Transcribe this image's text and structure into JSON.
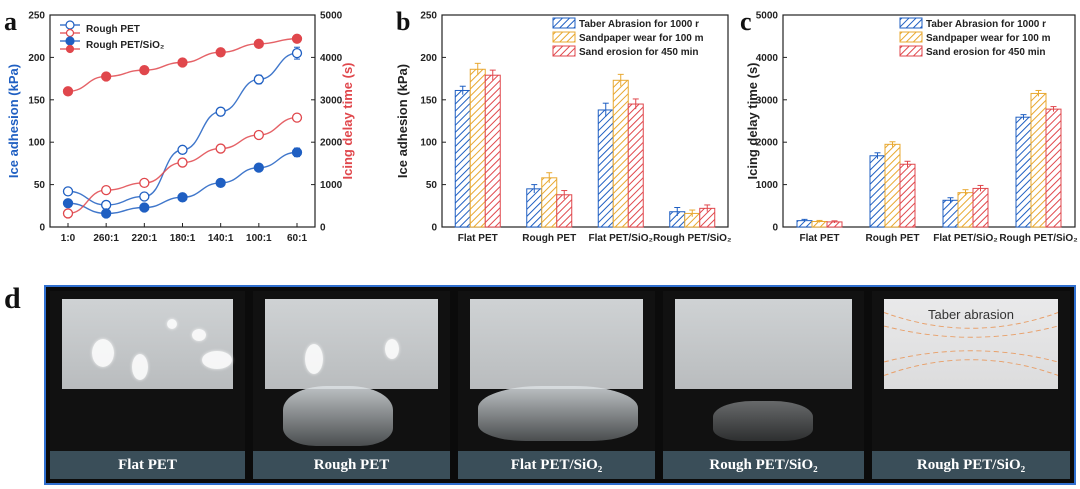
{
  "panel_labels": {
    "a": "a",
    "b": "b",
    "c": "c",
    "d": "d"
  },
  "colors": {
    "blue": "#1f5fc2",
    "red": "#e0474c",
    "yellow": "#e8a830",
    "axis": "#222222"
  },
  "chart_data": [
    {
      "panel": "a",
      "type": "line",
      "categories": [
        "1:0",
        "260:1",
        "220:1",
        "180:1",
        "140:1",
        "100:1",
        "60:1"
      ],
      "ylabel": "Ice adhesion (kPa)",
      "ylabel_right": "Icing delay time (s)",
      "ylim": [
        0,
        250
      ],
      "yticks": [
        0,
        50,
        100,
        150,
        200,
        250
      ],
      "ylim_right": [
        0,
        5000
      ],
      "yticks_right": [
        0,
        1000,
        2000,
        3000,
        4000,
        5000
      ],
      "legend": [
        "Rough PET",
        "Rough PET/SiO₂"
      ],
      "legend_position": "top-left",
      "series": [
        {
          "name": "Rough PET",
          "axis": "left",
          "style": "open",
          "color": "#1f5fc2",
          "values": [
            42,
            26,
            36,
            91,
            136,
            174,
            205
          ],
          "errors": [
            3,
            3,
            3,
            3,
            4,
            5,
            7
          ]
        },
        {
          "name": "Rough PET/SiO₂",
          "axis": "left",
          "style": "filled",
          "color": "#1f5fc2",
          "values": [
            28,
            16,
            23,
            35,
            52,
            70,
            88
          ],
          "errors": [
            2,
            2,
            2,
            2,
            3,
            4,
            5
          ]
        },
        {
          "name": "Rough PET",
          "axis": "right",
          "style": "open",
          "color": "#e0474c",
          "values": [
            320,
            870,
            1040,
            1520,
            1850,
            2170,
            2580
          ]
        },
        {
          "name": "Rough PET/SiO₂",
          "axis": "right",
          "style": "filled",
          "color": "#e0474c",
          "values": [
            3200,
            3550,
            3700,
            3880,
            4120,
            4320,
            4440
          ]
        }
      ]
    },
    {
      "panel": "b",
      "type": "bar",
      "categories": [
        "Flat PET",
        "Rough PET",
        "Flat PET/SiO₂",
        "Rough PET/SiO₂"
      ],
      "ylabel": "Ice adhesion (kPa)",
      "ylim": [
        0,
        250
      ],
      "yticks": [
        0,
        50,
        100,
        150,
        200,
        250
      ],
      "legend_position": "top-right",
      "series": [
        {
          "name": "Taber Abrasion for 1000 r",
          "color": "#1f5fc2",
          "values": [
            161,
            45,
            138,
            18
          ],
          "errors": [
            5,
            5,
            8,
            5
          ]
        },
        {
          "name": "Sandpaper wear for 100 m",
          "color": "#e8a830",
          "values": [
            186,
            58,
            173,
            16
          ],
          "errors": [
            7,
            6,
            7,
            4
          ]
        },
        {
          "name": "Sand erosion for 450 min",
          "color": "#e0474c",
          "values": [
            179,
            38,
            145,
            22
          ],
          "errors": [
            6,
            5,
            6,
            4
          ]
        }
      ]
    },
    {
      "panel": "c",
      "type": "bar",
      "categories": [
        "Flat PET",
        "Rough PET",
        "Flat PET/SiO₂",
        "Rough PET/SiO₂"
      ],
      "ylabel": "Icing delay time (s)",
      "ylim": [
        0,
        5000
      ],
      "yticks": [
        0,
        1000,
        2000,
        3000,
        4000,
        5000
      ],
      "legend_position": "top-right",
      "series": [
        {
          "name": "Taber Abrasion for 1000 r",
          "color": "#1f5fc2",
          "values": [
            150,
            1680,
            630,
            2590
          ],
          "errors": [
            30,
            70,
            60,
            60
          ]
        },
        {
          "name": "Sandpaper wear for 100 m",
          "color": "#e8a830",
          "values": [
            130,
            1950,
            810,
            3150
          ],
          "errors": [
            25,
            60,
            70,
            70
          ]
        },
        {
          "name": "Sand erosion for 450 min",
          "color": "#e0474c",
          "values": [
            120,
            1480,
            910,
            2780
          ],
          "errors": [
            25,
            70,
            70,
            60
          ]
        }
      ]
    }
  ],
  "photos": {
    "captions": [
      "Flat PET",
      "Rough PET",
      "Flat PET/SiO₂",
      "Rough PET/SiO₂",
      "Rough PET/SiO₂"
    ],
    "annotation": "Taber abrasion"
  }
}
